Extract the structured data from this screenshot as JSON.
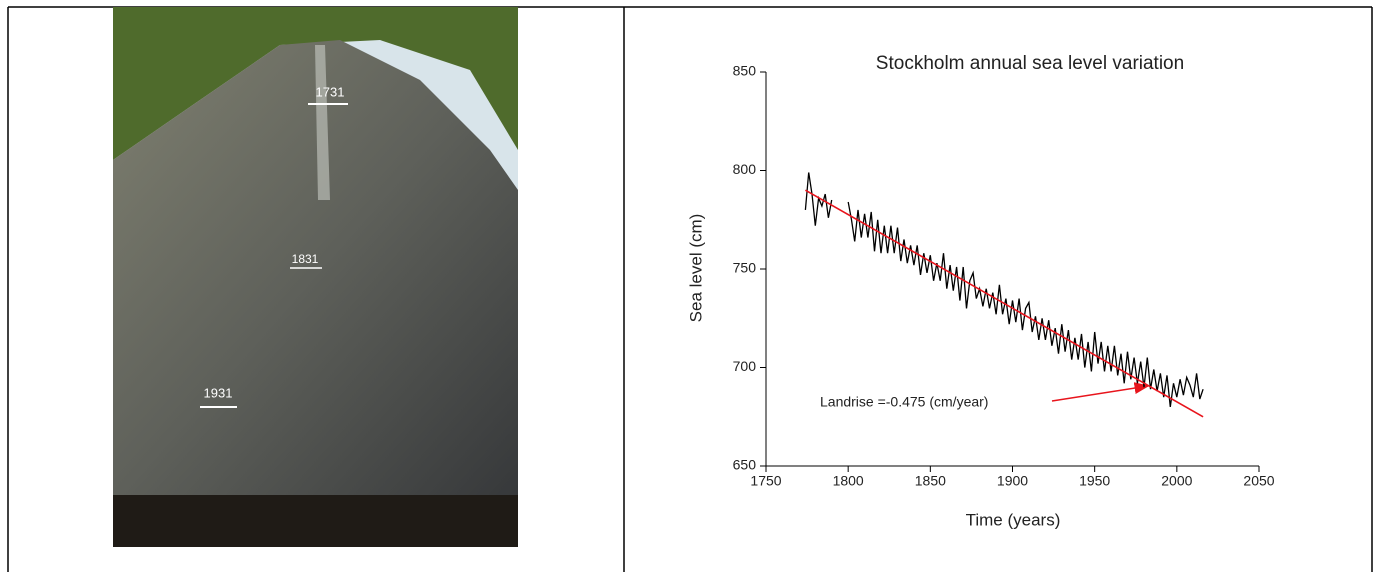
{
  "photo": {
    "marks": [
      "1731",
      "1831",
      "1931"
    ]
  },
  "chart_data": {
    "type": "line",
    "title": "Stockholm annual sea level variation",
    "xlabel": "Time (years)",
    "ylabel": "Sea level (cm)",
    "xlim": [
      1750,
      2050
    ],
    "xticks": [
      1750,
      1800,
      1850,
      1900,
      1950,
      2000,
      2050
    ],
    "ylim": [
      650,
      850
    ],
    "yticks": [
      650,
      700,
      750,
      800,
      850
    ],
    "annotation": "Landrise =-0.475 (cm/year)",
    "series": [
      {
        "color": "#000000",
        "x": [
          1774,
          1776,
          1778,
          1780,
          1782,
          1784,
          1786,
          1788,
          1790,
          1792,
          1794,
          1796,
          1798,
          1800,
          1802,
          1804,
          1806,
          1808,
          1810,
          1812,
          1814,
          1816,
          1818,
          1820,
          1822,
          1824,
          1826,
          1828,
          1830,
          1832,
          1834,
          1836,
          1838,
          1840,
          1842,
          1844,
          1846,
          1848,
          1850,
          1852,
          1854,
          1856,
          1858,
          1860,
          1862,
          1864,
          1866,
          1868,
          1870,
          1872,
          1874,
          1876,
          1878,
          1880,
          1882,
          1884,
          1886,
          1888,
          1890,
          1892,
          1894,
          1896,
          1898,
          1900,
          1902,
          1904,
          1906,
          1908,
          1910,
          1912,
          1914,
          1916,
          1918,
          1920,
          1922,
          1924,
          1926,
          1928,
          1930,
          1932,
          1934,
          1936,
          1938,
          1940,
          1942,
          1944,
          1946,
          1948,
          1950,
          1952,
          1954,
          1956,
          1958,
          1960,
          1962,
          1964,
          1966,
          1968,
          1970,
          1972,
          1974,
          1976,
          1978,
          1980,
          1982,
          1984,
          1986,
          1988,
          1990,
          1992,
          1994,
          1996,
          1998,
          2000,
          2002,
          2004,
          2006,
          2008,
          2010,
          2012,
          2014,
          2016
        ],
        "values": [
          780,
          799,
          788,
          772,
          786,
          782,
          788,
          776,
          785,
          null,
          null,
          null,
          null,
          784,
          775,
          764,
          780,
          766,
          778,
          766,
          779,
          759,
          775,
          758,
          772,
          758,
          772,
          758,
          771,
          754,
          765,
          753,
          762,
          752,
          762,
          747,
          758,
          748,
          757,
          744,
          753,
          744,
          758,
          740,
          752,
          739,
          751,
          734,
          751,
          730,
          744,
          748,
          735,
          740,
          731,
          740,
          730,
          738,
          727,
          742,
          727,
          735,
          722,
          734,
          723,
          735,
          719,
          730,
          733,
          718,
          726,
          714,
          725,
          714,
          724,
          711,
          720,
          707,
          722,
          708,
          719,
          704,
          715,
          704,
          717,
          700,
          713,
          698,
          718,
          702,
          713,
          698,
          711,
          698,
          711,
          696,
          707,
          692,
          708,
          694,
          705,
          692,
          703,
          690,
          705,
          689,
          699,
          688,
          697,
          685,
          696,
          680,
          692,
          685,
          694,
          686,
          695,
          691,
          685,
          697,
          684,
          689
        ]
      },
      {
        "color": "#e8141c",
        "x": [
          1774,
          2016
        ],
        "values": [
          790,
          675
        ]
      }
    ]
  }
}
